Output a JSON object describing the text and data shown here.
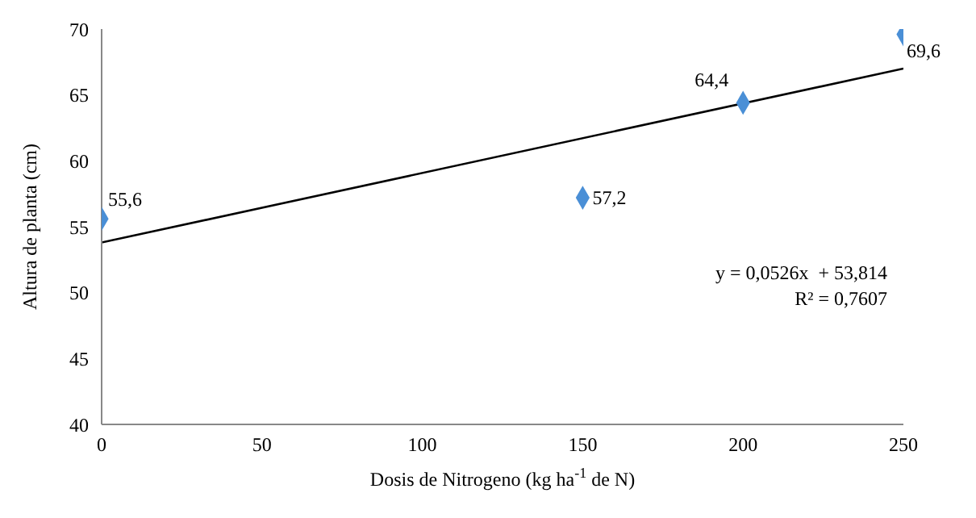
{
  "chart_data": {
    "type": "scatter",
    "xlabel": "Dosis de Nitrogeno (kg ha$^{-1}$ de N)",
    "ylabel": "Altura de planta (cm)",
    "x": [
      0,
      150,
      200,
      250
    ],
    "series": [
      {
        "type": "scatter",
        "color": "#4a8fd6",
        "values": [
          55.6,
          57.2,
          64.4,
          69.6
        ],
        "value_labels": [
          "55,6",
          "57,2",
          "64,4",
          "69,6"
        ],
        "marker": "diamond"
      },
      {
        "type": "line",
        "color": "#000000",
        "x": [
          0,
          250
        ],
        "values": [
          53.8,
          67.0
        ],
        "marker": "none"
      }
    ],
    "xlim": [
      0,
      250
    ],
    "xticks": [
      0,
      50,
      100,
      150,
      200,
      250
    ],
    "ylim": [
      40,
      70
    ],
    "yticks": [
      40,
      45,
      50,
      55,
      60,
      65,
      70
    ],
    "annotations": [
      "y = 0,0526x  + 53,814",
      "R² = 0,7607"
    ]
  }
}
